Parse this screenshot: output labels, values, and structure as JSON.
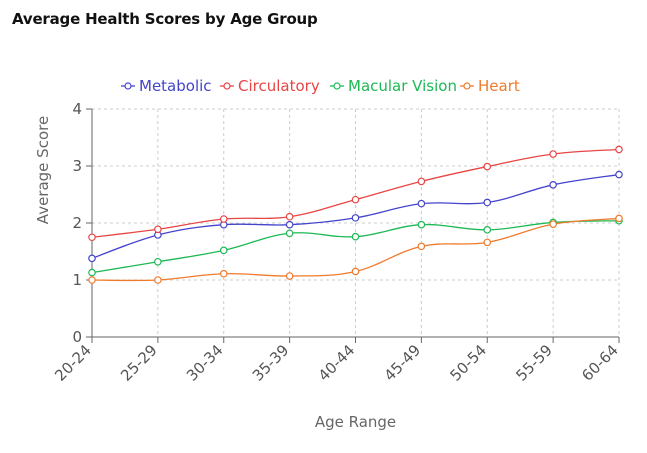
{
  "page": {
    "title": "Average Health Scores by Age Group"
  },
  "chart_data": {
    "type": "line",
    "title": "Average Health Scores by Age Group",
    "xlabel": "Age Range",
    "ylabel": "Average Score",
    "categories": [
      "20-24",
      "25-29",
      "30-34",
      "35-39",
      "40-44",
      "45-49",
      "50-54",
      "55-59",
      "60-64"
    ],
    "ylim": [
      0,
      4
    ],
    "yticks": [
      0,
      1,
      2,
      3,
      4
    ],
    "grid": true,
    "legend_position": "top",
    "series": [
      {
        "name": "Metabolic",
        "color": "#4444cc",
        "values": [
          1.38,
          1.79,
          1.97,
          1.97,
          2.09,
          2.34,
          2.36,
          2.67,
          2.85
        ]
      },
      {
        "name": "Circulatory",
        "color": "#e84545",
        "values": [
          1.75,
          1.89,
          2.07,
          2.11,
          2.41,
          2.73,
          2.99,
          3.21,
          3.29
        ]
      },
      {
        "name": "Macular Vision",
        "color": "#1db954",
        "values": [
          1.13,
          1.32,
          1.52,
          1.82,
          1.76,
          1.97,
          1.88,
          2.01,
          2.04
        ]
      },
      {
        "name": "Heart",
        "color": "#f07a2c",
        "values": [
          1.0,
          1.0,
          1.11,
          1.07,
          1.15,
          1.59,
          1.66,
          1.98,
          2.08
        ]
      }
    ]
  }
}
